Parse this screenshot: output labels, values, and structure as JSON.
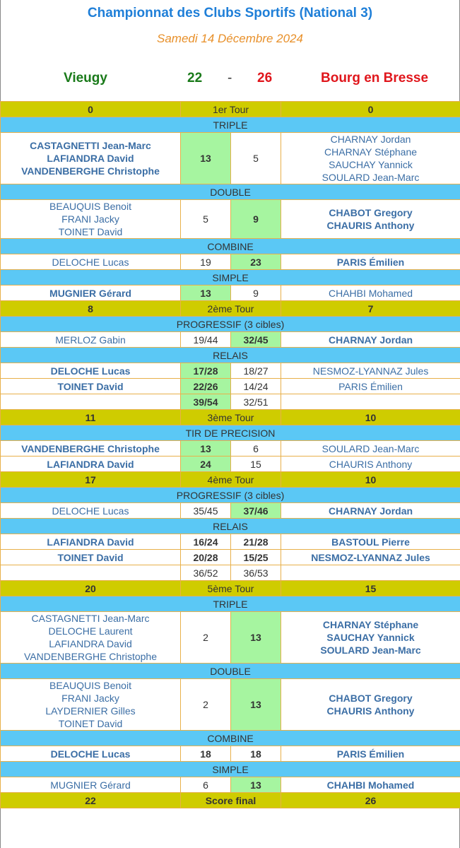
{
  "title": "Championnat des Clubs Sportifs (National 3)",
  "date": "Samedi 14 Décembre 2024",
  "home": {
    "name": "Vieugy",
    "score": "22",
    "color": "#1a7a1a"
  },
  "separator": "-",
  "away": {
    "name": "Bourg en Bresse",
    "score": "26",
    "color": "#e0161c"
  },
  "colors": {
    "tour": "#cfcc00",
    "section": "#5bc8f5",
    "winner": "#a6f5a0",
    "names": "#3b6ea5",
    "border": "#e8b04a"
  },
  "rows": [
    {
      "type": "tour",
      "left": "0",
      "label": "1er Tour",
      "right": "0"
    },
    {
      "type": "section",
      "label": "TRIPLE"
    },
    {
      "type": "match",
      "left": [
        "CASTAGNETTI Jean-Marc",
        "LAFIANDRA David",
        "VANDENBERGHE Christophe"
      ],
      "leftBold": true,
      "sl": "13",
      "sr": "5",
      "win": "left",
      "right": [
        "CHARNAY Jordan",
        "CHARNAY Stéphane",
        "SAUCHAY Yannick",
        "SOULARD Jean-Marc"
      ],
      "rightBold": false
    },
    {
      "type": "section",
      "label": "DOUBLE"
    },
    {
      "type": "match",
      "left": [
        "BEAUQUIS Benoit",
        "FRANI Jacky",
        "TOINET David"
      ],
      "leftBold": false,
      "sl": "5",
      "sr": "9",
      "win": "right",
      "right": [
        "CHABOT Gregory",
        "CHAURIS Anthony"
      ],
      "rightBold": true
    },
    {
      "type": "section",
      "label": "COMBINE"
    },
    {
      "type": "match",
      "left": [
        "DELOCHE Lucas"
      ],
      "leftBold": false,
      "sl": "19",
      "sr": "23",
      "win": "right",
      "right": [
        "PARIS Émilien"
      ],
      "rightBold": true
    },
    {
      "type": "section",
      "label": "SIMPLE"
    },
    {
      "type": "match",
      "left": [
        "MUGNIER Gérard"
      ],
      "leftBold": true,
      "sl": "13",
      "sr": "9",
      "win": "left",
      "right": [
        "CHAHBI Mohamed"
      ],
      "rightBold": false
    },
    {
      "type": "tour",
      "left": "8",
      "label": "2ème Tour",
      "right": "7"
    },
    {
      "type": "section",
      "label": "PROGRESSIF (3 cibles)"
    },
    {
      "type": "match",
      "left": [
        "MERLOZ Gabin"
      ],
      "leftBold": false,
      "sl": "19/44",
      "sr": "32/45",
      "win": "right",
      "right": [
        "CHARNAY Jordan"
      ],
      "rightBold": true
    },
    {
      "type": "section",
      "label": "RELAIS"
    },
    {
      "type": "match",
      "left": [
        "DELOCHE Lucas"
      ],
      "leftBold": true,
      "sl": "17/28",
      "sr": "18/27",
      "win": "left",
      "right": [
        "NESMOZ-LYANNAZ Jules"
      ],
      "rightBold": false
    },
    {
      "type": "match",
      "left": [
        "TOINET David"
      ],
      "leftBold": true,
      "sl": "22/26",
      "sr": "14/24",
      "win": "left",
      "right": [
        "PARIS Émilien"
      ],
      "rightBold": false
    },
    {
      "type": "match",
      "left": [],
      "leftBold": false,
      "sl": "39/54",
      "sr": "32/51",
      "win": "left",
      "right": [],
      "rightBold": false
    },
    {
      "type": "tour",
      "left": "11",
      "label": "3ème Tour",
      "right": "10"
    },
    {
      "type": "section",
      "label": "TIR DE PRECISION"
    },
    {
      "type": "match",
      "left": [
        "VANDENBERGHE Christophe"
      ],
      "leftBold": true,
      "sl": "13",
      "sr": "6",
      "win": "left",
      "right": [
        "SOULARD Jean-Marc"
      ],
      "rightBold": false
    },
    {
      "type": "match",
      "left": [
        "LAFIANDRA David"
      ],
      "leftBold": true,
      "sl": "24",
      "sr": "15",
      "win": "left",
      "right": [
        "CHAURIS Anthony"
      ],
      "rightBold": false
    },
    {
      "type": "tour",
      "left": "17",
      "label": "4ème Tour",
      "right": "10"
    },
    {
      "type": "section",
      "label": "PROGRESSIF (3 cibles)"
    },
    {
      "type": "match",
      "left": [
        "DELOCHE Lucas"
      ],
      "leftBold": false,
      "sl": "35/45",
      "sr": "37/46",
      "win": "right",
      "right": [
        "CHARNAY Jordan"
      ],
      "rightBold": true
    },
    {
      "type": "section",
      "label": "RELAIS"
    },
    {
      "type": "match",
      "left": [
        "LAFIANDRA David"
      ],
      "leftBold": true,
      "sl": "16/24",
      "sr": "21/28",
      "win": "none",
      "right": [
        "BASTOUL Pierre"
      ],
      "rightBold": true
    },
    {
      "type": "match",
      "left": [
        "TOINET David"
      ],
      "leftBold": true,
      "sl": "20/28",
      "sr": "15/25",
      "win": "none",
      "right": [
        "NESMOZ-LYANNAZ Jules"
      ],
      "rightBold": true
    },
    {
      "type": "match",
      "left": [],
      "leftBold": false,
      "sl": "36/52",
      "sr": "36/53",
      "win": "none",
      "right": [],
      "rightBold": false
    },
    {
      "type": "tour",
      "left": "20",
      "label": "5ème Tour",
      "right": "15"
    },
    {
      "type": "section",
      "label": "TRIPLE"
    },
    {
      "type": "match",
      "left": [
        "CASTAGNETTI Jean-Marc",
        "DELOCHE Laurent",
        "LAFIANDRA David",
        "VANDENBERGHE Christophe"
      ],
      "leftBold": false,
      "sl": "2",
      "sr": "13",
      "win": "right",
      "right": [
        "CHARNAY Stéphane",
        "SAUCHAY Yannick",
        "SOULARD Jean-Marc"
      ],
      "rightBold": true
    },
    {
      "type": "section",
      "label": "DOUBLE"
    },
    {
      "type": "match",
      "left": [
        "BEAUQUIS Benoit",
        "FRANI Jacky",
        "LAYDERNIER Gilles",
        "TOINET David"
      ],
      "leftBold": false,
      "sl": "2",
      "sr": "13",
      "win": "right",
      "right": [
        "CHABOT Gregory",
        "CHAURIS Anthony"
      ],
      "rightBold": true
    },
    {
      "type": "section",
      "label": "COMBINE"
    },
    {
      "type": "match",
      "left": [
        "DELOCHE Lucas"
      ],
      "leftBold": true,
      "sl": "18",
      "sr": "18",
      "win": "none",
      "right": [
        "PARIS Émilien"
      ],
      "rightBold": true
    },
    {
      "type": "section",
      "label": "SIMPLE"
    },
    {
      "type": "match",
      "left": [
        "MUGNIER Gérard"
      ],
      "leftBold": false,
      "sl": "6",
      "sr": "13",
      "win": "right",
      "right": [
        "CHAHBI Mohamed"
      ],
      "rightBold": true
    },
    {
      "type": "tour",
      "left": "22",
      "label": "Score final",
      "right": "26",
      "final": true
    }
  ]
}
